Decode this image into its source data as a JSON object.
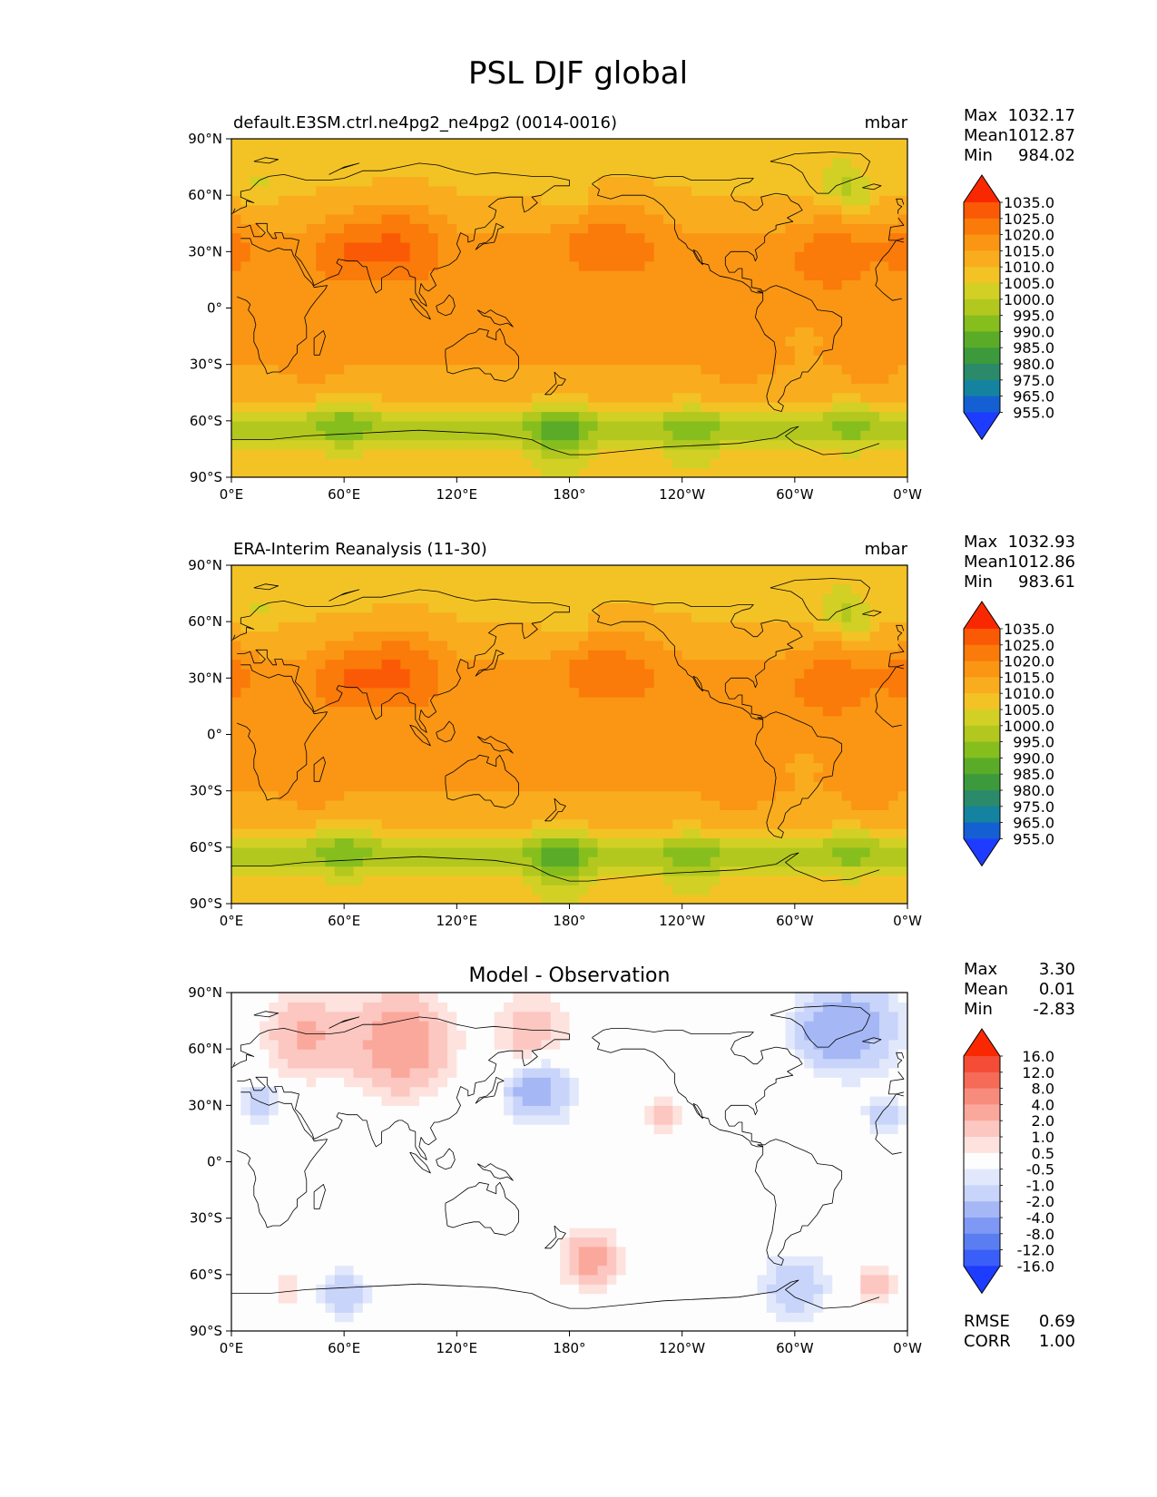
{
  "figure": {
    "title": "PSL DJF global"
  },
  "axes": {
    "lat_ticks": [
      "90°N",
      "60°N",
      "30°N",
      "0°",
      "30°S",
      "60°S",
      "90°S"
    ],
    "lon_ticks": [
      "0°E",
      "60°E",
      "120°E",
      "180°",
      "120°W",
      "60°W",
      "0°W"
    ]
  },
  "panels": [
    {
      "title_left": "default.E3SM.ctrl.ne4pg2_ne4pg2 (0014-0016)",
      "title_center": "",
      "units": "mbar",
      "stats": [
        {
          "label": "Max",
          "value": "1032.17"
        },
        {
          "label": "Mean",
          "value": "1012.87"
        },
        {
          "label": "Min",
          "value": "984.02"
        }
      ],
      "colorbar_labels": [
        "1035.0",
        "1025.0",
        "1020.0",
        "1015.0",
        "1010.0",
        "1005.0",
        "1000.0",
        "995.0",
        "990.0",
        "985.0",
        "980.0",
        "975.0",
        "965.0",
        "955.0"
      ],
      "extra_stats": []
    },
    {
      "title_left": "ERA-Interim Reanalysis (11-30)",
      "title_center": "",
      "units": "mbar",
      "stats": [
        {
          "label": "Max",
          "value": "1032.93"
        },
        {
          "label": "Mean",
          "value": "1012.86"
        },
        {
          "label": "Min",
          "value": "983.61"
        }
      ],
      "colorbar_labels": [
        "1035.0",
        "1025.0",
        "1020.0",
        "1015.0",
        "1010.0",
        "1005.0",
        "1000.0",
        "995.0",
        "990.0",
        "985.0",
        "980.0",
        "975.0",
        "965.0",
        "955.0"
      ],
      "extra_stats": []
    },
    {
      "title_left": "",
      "title_center": "Model - Observation",
      "units": "",
      "stats": [
        {
          "label": "Max",
          "value": "3.30"
        },
        {
          "label": "Mean",
          "value": "0.01"
        },
        {
          "label": "Min",
          "value": "-2.83"
        }
      ],
      "colorbar_labels": [
        "16.0",
        "12.0",
        "8.0",
        "4.0",
        "2.0",
        "1.0",
        "0.5",
        "-0.5",
        "-1.0",
        "-2.0",
        "-4.0",
        "-8.0",
        "-12.0",
        "-16.0"
      ],
      "extra_stats": [
        {
          "label": "RMSE",
          "value": "0.69"
        },
        {
          "label": "CORR",
          "value": "1.00"
        }
      ]
    }
  ],
  "colors": {
    "field_cmap": [
      "#1e3cff",
      "#1460d2",
      "#1483a0",
      "#2a8a6a",
      "#3c9a3c",
      "#5aac28",
      "#86be1e",
      "#b2c81e",
      "#d2d024",
      "#f3c326",
      "#f9ad1e",
      "#fa9614",
      "#fa7a0a",
      "#fa5a05",
      "#fa2800"
    ],
    "diff_cmap": [
      "#1e3cff",
      "#3a5ef8",
      "#5a7ef2",
      "#7f98f3",
      "#a6b7f6",
      "#c8d4f9",
      "#e2e8fb",
      "#fdfdfd",
      "#fde2de",
      "#fcc7c0",
      "#fba89c",
      "#f88c7c",
      "#f66a58",
      "#f44c36",
      "#fa2800"
    ],
    "field_base": "#f9ad1e",
    "diff_base": "#fdfdfd",
    "coastline": "#000000"
  }
}
